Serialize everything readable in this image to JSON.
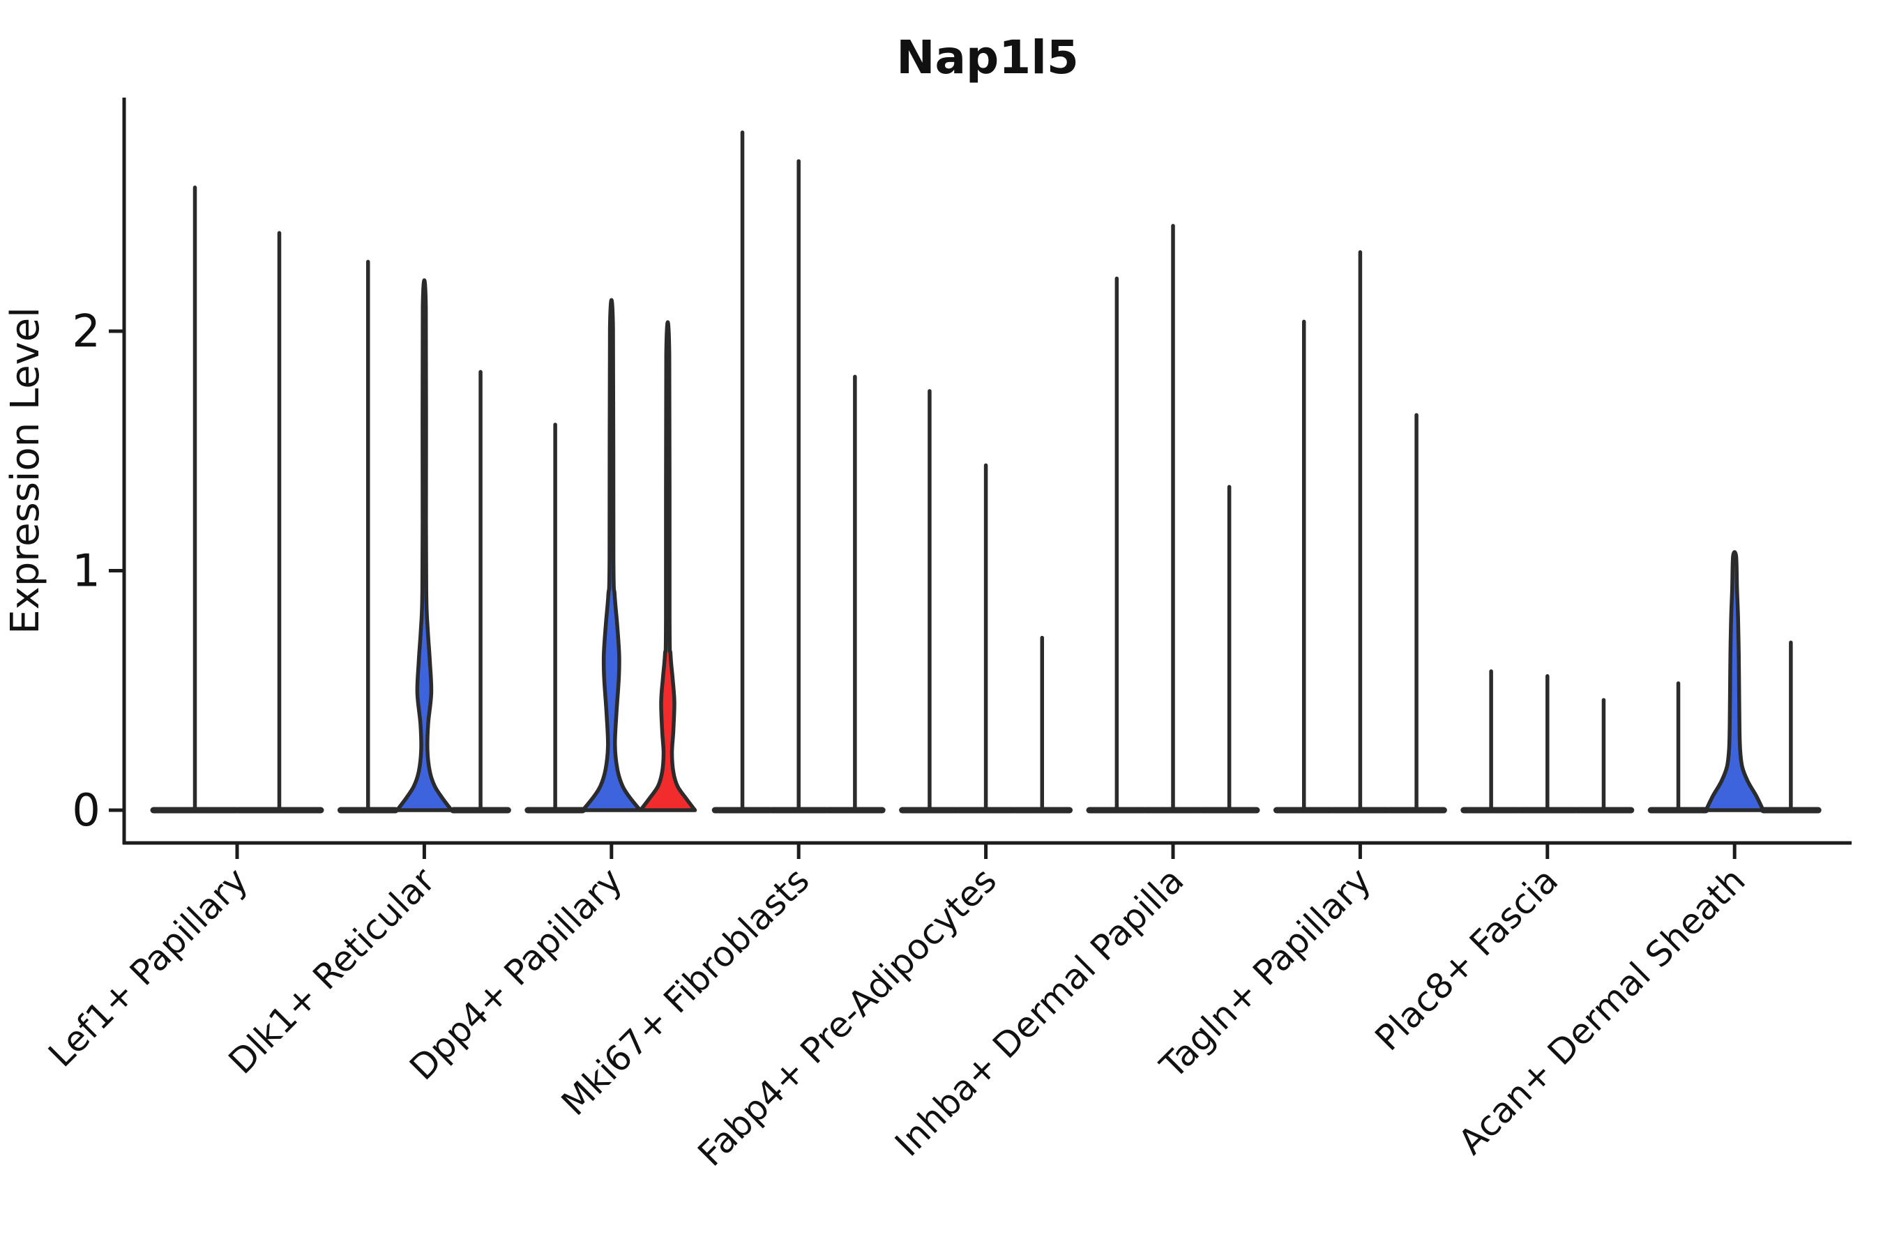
{
  "chart_data": {
    "type": "violin",
    "title": "Nap1l5",
    "ylabel": "Expression Level",
    "xlabel": "",
    "yticks": [
      0,
      1,
      2
    ],
    "ylim": [
      -0.14,
      2.97
    ],
    "grid": false,
    "legend": "none",
    "palette": {
      "blue": "#3d63dd",
      "red": "#f22c2c",
      "edge": "#2b2b2b",
      "axis": "#1c1c1c"
    },
    "groups": [
      {
        "label": "Lef1+ Papillary",
        "violins": [
          {
            "max": 2.6,
            "fill": "none"
          },
          {
            "max": 2.41,
            "fill": "none"
          }
        ]
      },
      {
        "label": "Dlk1+ Reticular",
        "violins": [
          {
            "max": 2.29,
            "fill": "none"
          },
          {
            "max": 2.1,
            "fill": "blue",
            "profile": [
              [
                0,
                39
              ],
              [
                0.05,
                26
              ],
              [
                0.1,
                15
              ],
              [
                0.16,
                8
              ],
              [
                0.25,
                4.5
              ],
              [
                0.36,
                5.5
              ],
              [
                0.49,
                10
              ],
              [
                0.62,
                8
              ],
              [
                0.75,
                5
              ],
              [
                0.88,
                3
              ],
              [
                1.2,
                2.4
              ],
              [
                2.1,
                2.2
              ]
            ]
          },
          {
            "max": 1.83,
            "fill": "none"
          }
        ]
      },
      {
        "label": "Dpp4+ Papillary",
        "violins": [
          {
            "max": 1.61,
            "fill": "none"
          },
          {
            "max": 2.01,
            "fill": "blue",
            "profile": [
              [
                0,
                41
              ],
              [
                0.05,
                27
              ],
              [
                0.1,
                16
              ],
              [
                0.17,
                8.5
              ],
              [
                0.27,
                5
              ],
              [
                0.4,
                7
              ],
              [
                0.55,
                10.5
              ],
              [
                0.65,
                11
              ],
              [
                0.78,
                8
              ],
              [
                0.9,
                4.5
              ],
              [
                1.05,
                2.8
              ],
              [
                2.01,
                2.2
              ]
            ]
          },
          {
            "max": 1.9,
            "fill": "red",
            "profile": [
              [
                0,
                39
              ],
              [
                0.05,
                26
              ],
              [
                0.1,
                14
              ],
              [
                0.16,
                8
              ],
              [
                0.24,
                6
              ],
              [
                0.33,
                8
              ],
              [
                0.45,
                9.5
              ],
              [
                0.55,
                7
              ],
              [
                0.65,
                4
              ],
              [
                0.8,
                2.6
              ],
              [
                1.9,
                2.2
              ]
            ]
          }
        ]
      },
      {
        "label": "Mki67+ Fibroblasts",
        "violins": [
          {
            "max": 2.83,
            "fill": "none"
          },
          {
            "max": 2.71,
            "fill": "none"
          },
          {
            "max": 1.81,
            "fill": "none"
          }
        ]
      },
      {
        "label": "Fabp4+ Pre-Adipocytes",
        "violins": [
          {
            "max": 1.75,
            "fill": "none"
          },
          {
            "max": 1.44,
            "fill": "none"
          },
          {
            "max": 0.72,
            "fill": "none"
          }
        ]
      },
      {
        "label": "Inhba+ Dermal Papilla",
        "violins": [
          {
            "max": 2.22,
            "fill": "none"
          },
          {
            "max": 2.44,
            "fill": "none"
          },
          {
            "max": 1.35,
            "fill": "none"
          }
        ]
      },
      {
        "label": "Tagln+ Papillary",
        "violins": [
          {
            "max": 2.04,
            "fill": "none"
          },
          {
            "max": 2.33,
            "fill": "none"
          },
          {
            "max": 1.65,
            "fill": "none"
          }
        ]
      },
      {
        "label": "Plac8+ Fascia",
        "violins": [
          {
            "max": 0.58,
            "fill": "none"
          },
          {
            "max": 0.56,
            "fill": "none"
          },
          {
            "max": 0.46,
            "fill": "none"
          }
        ]
      },
      {
        "label": "Acan+ Dermal Sheath",
        "violins": [
          {
            "max": 0.53,
            "fill": "none"
          },
          {
            "max": 1.06,
            "fill": "blue",
            "profile": [
              [
                0,
                41
              ],
              [
                0.06,
                31
              ],
              [
                0.12,
                19
              ],
              [
                0.18,
                11
              ],
              [
                0.25,
                8
              ],
              [
                0.35,
                7
              ],
              [
                0.5,
                6.5
              ],
              [
                0.65,
                6
              ],
              [
                0.8,
                5
              ],
              [
                0.92,
                3.5
              ],
              [
                1.06,
                2.2
              ]
            ]
          },
          {
            "max": 0.7,
            "fill": "none"
          }
        ]
      }
    ]
  }
}
